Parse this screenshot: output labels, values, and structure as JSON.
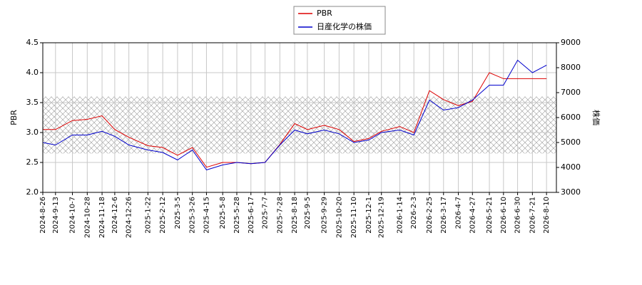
{
  "chart_data": {
    "type": "line",
    "x": [
      "2024-8-26",
      "2024-9-13",
      "2024-10-7",
      "2024-10-28",
      "2024-11-18",
      "2024-12-6",
      "2024-12-26",
      "2025-1-22",
      "2025-2-12",
      "2025-3-5",
      "2025-3-26",
      "2025-4-15",
      "2025-5-8",
      "2025-5-28",
      "2025-6-17",
      "2025-7-7",
      "2025-7-28",
      "2025-8-18",
      "2025-9-5",
      "2025-9-29",
      "2025-10-20",
      "2025-11-10",
      "2025-12-1",
      "2025-12-19",
      "2026-1-14",
      "2026-2-3",
      "2026-2-25",
      "2026-3-17",
      "2026-4-7",
      "2026-4-27",
      "2026-5-21",
      "2026-6-10",
      "2026-6-30",
      "2026-7-21",
      "2026-8-10"
    ],
    "series": [
      {
        "name": "PBR",
        "color": "#dd0000",
        "axis": "y",
        "values": [
          3.05,
          3.05,
          3.2,
          3.22,
          3.28,
          3.05,
          2.92,
          2.78,
          2.75,
          2.62,
          2.75,
          2.42,
          2.5,
          2.5,
          2.48,
          2.5,
          2.8,
          3.15,
          3.05,
          3.12,
          3.05,
          2.85,
          2.9,
          3.02,
          3.1,
          3.0,
          3.7,
          3.55,
          3.45,
          3.52,
          4.0,
          3.9,
          3.9,
          3.9,
          3.9
        ]
      },
      {
        "name": "日産化学の株価",
        "color": "#0000cc",
        "axis": "y2",
        "values": [
          5000,
          4900,
          5300,
          5300,
          5450,
          5250,
          4900,
          4700,
          4600,
          4300,
          4700,
          3900,
          4100,
          4200,
          4150,
          4200,
          4900,
          5500,
          5350,
          5500,
          5350,
          5000,
          5100,
          5400,
          5500,
          5300,
          6700,
          6300,
          6400,
          6700,
          7300,
          7300,
          8300,
          7800,
          8100
        ]
      }
    ],
    "xlim": [
      "2024-8-26",
      "2026-8-24"
    ],
    "xticks": [
      "2024-8-26",
      "2024-9-13",
      "2024-10-7",
      "2024-10-28",
      "2024-11-18",
      "2024-12-6",
      "2024-12-26",
      "2025-1-22",
      "2025-2-12",
      "2025-3-5",
      "2025-3-26",
      "2025-4-15",
      "2025-5-8",
      "2025-5-28",
      "2025-6-17",
      "2025-7-7",
      "2025-7-28",
      "2025-8-18",
      "2025-9-5",
      "2025-9-29",
      "2025-10-20",
      "2025-11-10",
      "2025-12-1",
      "2025-12-19",
      "2026-1-14",
      "2026-2-3",
      "2026-2-25",
      "2026-3-17",
      "2026-4-7",
      "2026-4-27",
      "2026-5-21",
      "2026-6-10",
      "2026-6-30",
      "2026-7-21",
      "2026-8-10"
    ],
    "ylabel": "PBR",
    "ylim": [
      2.0,
      4.5
    ],
    "yticks": [
      {
        "value": 2.0,
        "label": "2.0"
      },
      {
        "value": 2.5,
        "label": "2.5"
      },
      {
        "value": 3.0,
        "label": "3.0"
      },
      {
        "value": 3.5,
        "label": "3.5"
      },
      {
        "value": 4.0,
        "label": "4.0"
      },
      {
        "value": 4.5,
        "label": "4.5"
      }
    ],
    "y2label": "株価",
    "y2lim": [
      3000,
      9000
    ],
    "y2ticks": [
      3000,
      4000,
      5000,
      6000,
      7000,
      8000,
      9000
    ],
    "band": [
      2.65,
      3.6
    ],
    "grid": true,
    "legend": "top"
  }
}
